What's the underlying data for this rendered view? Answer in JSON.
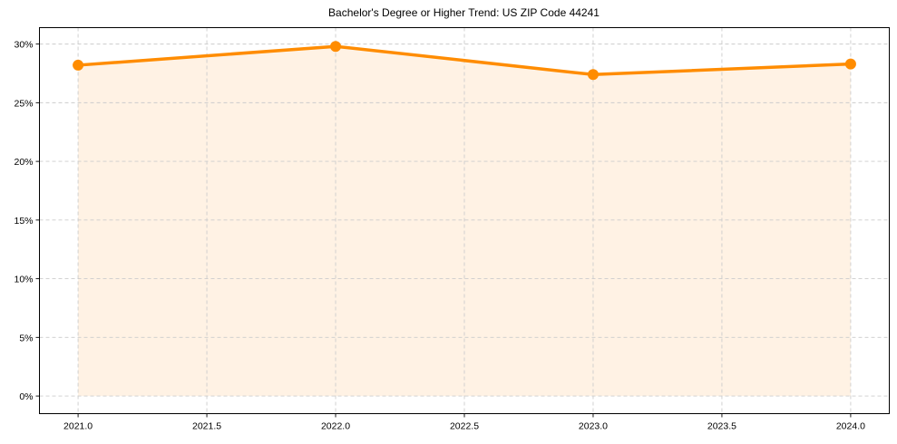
{
  "chart_data": {
    "type": "line",
    "title": "Bachelor's Degree or Higher Trend: US ZIP Code 44241",
    "xlabel": "",
    "ylabel": "",
    "x": [
      2021,
      2022,
      2023,
      2024
    ],
    "series": [
      {
        "name": "Bachelor's Degree or Higher",
        "values": [
          28.2,
          29.8,
          27.4,
          28.3
        ],
        "unit": "%",
        "fill_to_zero": true,
        "markers": true
      }
    ],
    "x_ticks": [
      "2021.0",
      "2021.5",
      "2022.0",
      "2022.5",
      "2023.0",
      "2023.5",
      "2024.0"
    ],
    "x_tick_values": [
      2021.0,
      2021.5,
      2022.0,
      2022.5,
      2023.0,
      2023.5,
      2024.0
    ],
    "y_ticks": [
      "0%",
      "5%",
      "10%",
      "15%",
      "20%",
      "25%",
      "30%"
    ],
    "y_tick_values": [
      0,
      5,
      10,
      15,
      20,
      25,
      30
    ],
    "xlim": [
      2020.85,
      2024.15
    ],
    "ylim": [
      -1.5,
      31.4
    ],
    "grid": true,
    "legend": null
  },
  "colors": {
    "line": "#ff8c00",
    "fill": "#fff2e4",
    "grid": "#cccccc",
    "axis": "#000000"
  }
}
